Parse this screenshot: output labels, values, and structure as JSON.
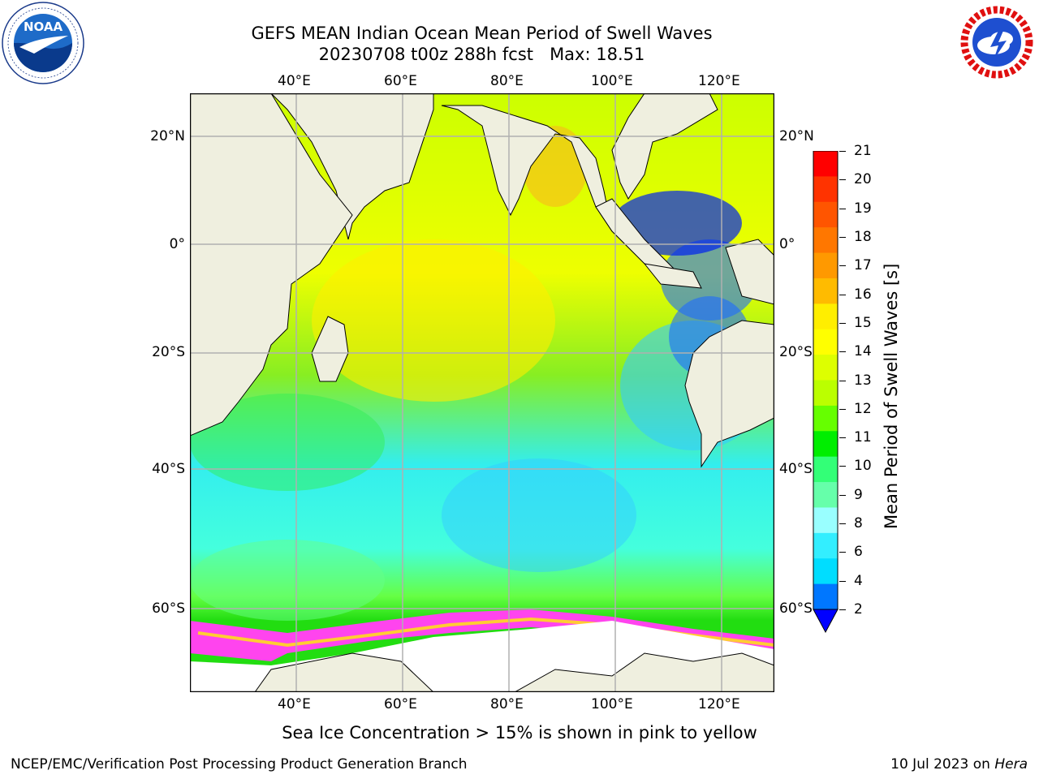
{
  "title_line1": "GEFS MEAN Indian Ocean Mean Period of Swell Waves",
  "title_line2": "20230708 t00z 288h fcst",
  "max_label": "Max: 18.51",
  "logos": {
    "left": "NOAA",
    "right": "National Weather Service"
  },
  "lon_ticks": [
    "40°E",
    "60°E",
    "80°E",
    "100°E",
    "120°E"
  ],
  "lat_ticks": [
    "20°N",
    "0°",
    "20°S",
    "40°S",
    "60°S"
  ],
  "colorbar": {
    "title": "Mean Period of Swell Waves [s]",
    "labels": [
      "21",
      "20",
      "19",
      "18",
      "17",
      "16",
      "15",
      "14",
      "13",
      "12",
      "11",
      "10",
      "9",
      "8",
      "6",
      "4",
      "2"
    ],
    "colors": [
      "#ff0000",
      "#ff3300",
      "#ff5500",
      "#ff7700",
      "#ff9900",
      "#ffbb00",
      "#ffee00",
      "#ffff00",
      "#ddff00",
      "#bbff00",
      "#66ff00",
      "#00ee00",
      "#33ff77",
      "#66ffaa",
      "#99ffff",
      "#33eeff",
      "#00ddff",
      "#0077ff"
    ],
    "extend_color": "#0000ff"
  },
  "sea_ice_note": "Sea Ice Concentration > 15% is shown in pink to yellow",
  "footer_left": "NCEP/EMC/Verification Post Processing Product Generation Branch",
  "footer_date": "10 Jul 2023 on",
  "footer_machine": "Hera"
}
